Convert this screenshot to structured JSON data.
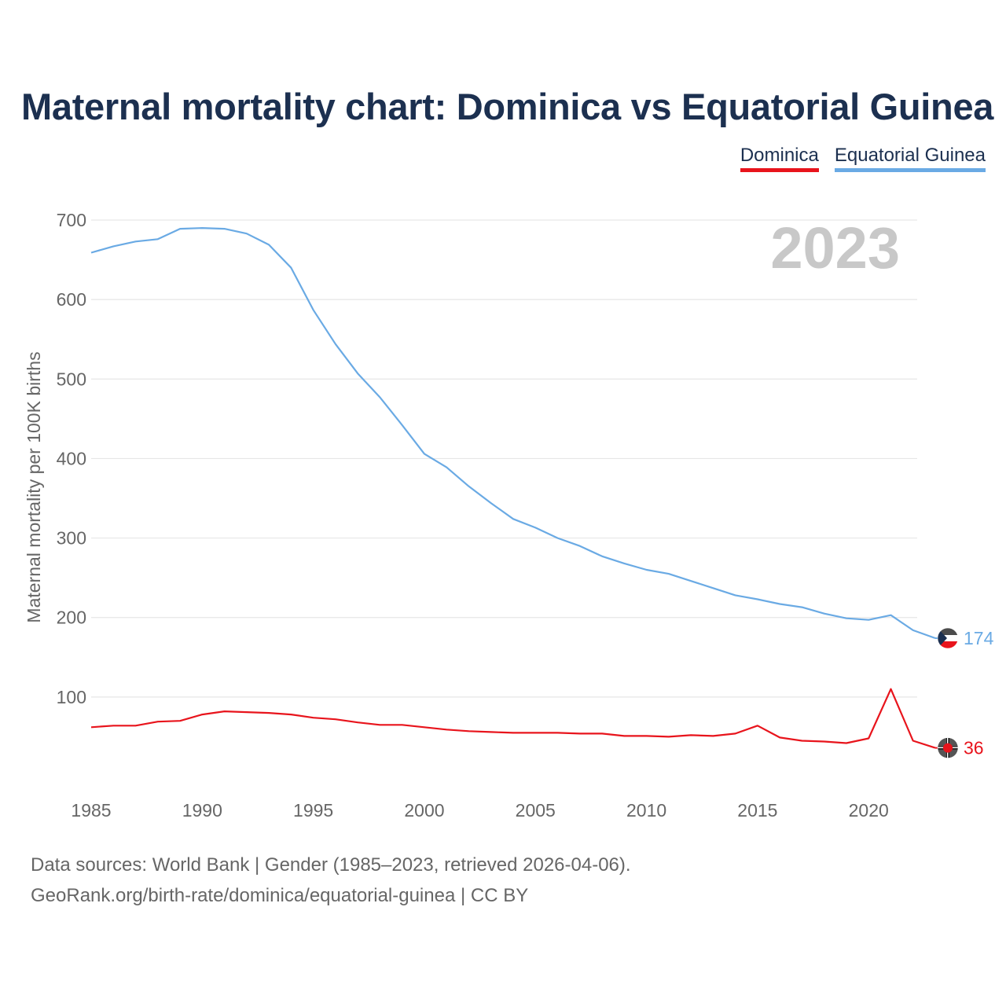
{
  "chart_data": {
    "type": "line",
    "title": "Maternal mortality chart: Dominica vs Equatorial Guinea",
    "xlabel": "",
    "ylabel": "Maternal mortality per 100K births",
    "xlim": [
      1985,
      2023
    ],
    "ylim": [
      0,
      700
    ],
    "x_ticks": [
      1985,
      1990,
      1995,
      2000,
      2005,
      2010,
      2015,
      2020
    ],
    "y_ticks": [
      100,
      200,
      300,
      400,
      500,
      600,
      700
    ],
    "year_watermark": "2023",
    "x": [
      1985,
      1986,
      1987,
      1988,
      1989,
      1990,
      1991,
      1992,
      1993,
      1994,
      1995,
      1996,
      1997,
      1998,
      1999,
      2000,
      2001,
      2002,
      2003,
      2004,
      2005,
      2006,
      2007,
      2008,
      2009,
      2010,
      2011,
      2012,
      2013,
      2014,
      2015,
      2016,
      2017,
      2018,
      2019,
      2020,
      2021,
      2022,
      2023
    ],
    "series": [
      {
        "name": "Dominica",
        "color": "#e8141c",
        "values": [
          62,
          64,
          64,
          69,
          70,
          78,
          82,
          81,
          80,
          78,
          74,
          72,
          68,
          65,
          65,
          62,
          59,
          57,
          56,
          55,
          55,
          55,
          54,
          54,
          51,
          51,
          50,
          52,
          51,
          54,
          64,
          49,
          45,
          44,
          42,
          48,
          110,
          45,
          36
        ],
        "end_label": "36",
        "flag_icon": "dominica-flag-icon"
      },
      {
        "name": "Equatorial Guinea",
        "color": "#6aaae4",
        "values": [
          659,
          667,
          673,
          676,
          689,
          690,
          689,
          683,
          669,
          640,
          587,
          544,
          507,
          477,
          442,
          406,
          389,
          365,
          344,
          324,
          313,
          300,
          290,
          277,
          268,
          260,
          255,
          246,
          237,
          228,
          223,
          217,
          213,
          205,
          199,
          197,
          203,
          184,
          174
        ],
        "end_label": "174",
        "flag_icon": "equatorial-guinea-flag-icon"
      }
    ],
    "legend": [
      "Dominica",
      "Equatorial Guinea"
    ],
    "legend_position": "top-right",
    "grid": true
  },
  "footer": {
    "sources": "Data sources: World Bank | Gender (1985–2023, retrieved 2026-04-06).",
    "credit": "GeoRank.org/birth-rate/dominica/equatorial-guinea | CC BY"
  }
}
